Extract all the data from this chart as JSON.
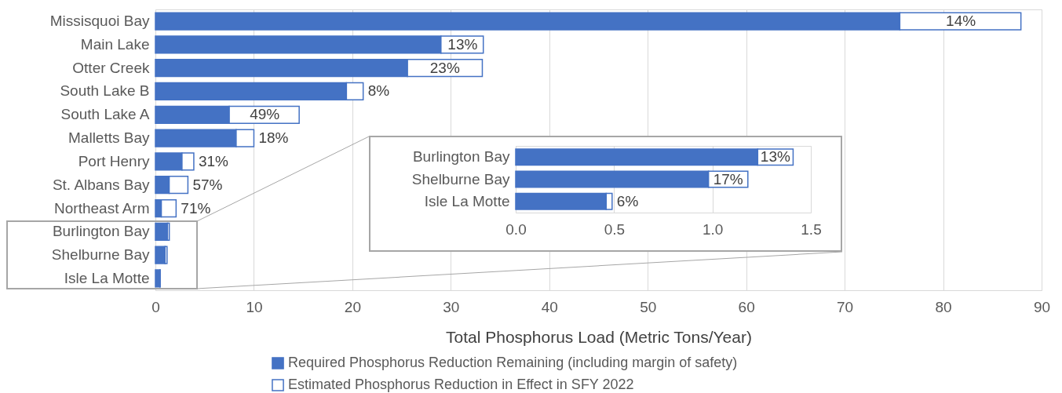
{
  "chart_data": [
    {
      "type": "bar",
      "orientation": "horizontal",
      "stacked": true,
      "xlabel": "Total Phosphorus Load (Metric Tons/Year)",
      "categories": [
        "Missisquoi Bay",
        "Main Lake",
        "Otter Creek",
        "South Lake B",
        "South Lake A",
        "Malletts Bay",
        "Port Henry",
        "St. Albans Bay",
        "Northeast Arm",
        "Burlington Bay",
        "Shelburne Bay",
        "Isle La Motte"
      ],
      "series": [
        {
          "name": "Required Phosphorus Reduction Remaining (including margin of safety)",
          "color": "#4472c4",
          "values": [
            75.6,
            29.0,
            25.6,
            19.4,
            7.5,
            8.2,
            2.7,
            1.4,
            0.6,
            1.23,
            0.98,
            0.46
          ]
        },
        {
          "name": "Estimated Phosphorus Reduction in Effect in SFY 2022",
          "color": "#ffffff",
          "values": [
            12.3,
            4.3,
            7.6,
            1.7,
            7.1,
            1.8,
            1.2,
            1.9,
            1.5,
            0.18,
            0.2,
            0.03
          ]
        }
      ],
      "annotations": [
        {
          "text": "14%",
          "x": 81.8,
          "y": "Missisquoi Bay"
        },
        {
          "text": "13%",
          "x": 31.2,
          "y": "Main Lake"
        },
        {
          "text": "23%",
          "x": 29.4,
          "y": "Otter Creek"
        },
        {
          "text": "8%",
          "x": 21.1,
          "y": "South Lake B"
        },
        {
          "text": "49%",
          "x": 11.1,
          "y": "South Lake A"
        },
        {
          "text": "18%",
          "x": 10.0,
          "y": "Malletts Bay"
        },
        {
          "text": "31%",
          "x": 3.9,
          "y": "Port Henry"
        },
        {
          "text": "57%",
          "x": 3.3,
          "y": "St. Albans Bay"
        },
        {
          "text": "71%",
          "x": 2.1,
          "y": "Northeast Arm"
        }
      ],
      "xlim": [
        0,
        90
      ],
      "xticks": [
        0,
        10,
        20,
        30,
        40,
        50,
        60,
        70,
        80,
        90
      ],
      "grid": "x",
      "legend": "bottom"
    },
    {
      "type": "bar",
      "orientation": "horizontal",
      "stacked": true,
      "categories": [
        "Burlington Bay",
        "Shelburne Bay",
        "Isle La Motte"
      ],
      "series": [
        {
          "color": "#4472c4",
          "values": [
            1.23,
            0.98,
            0.46
          ]
        },
        {
          "color": "#ffffff",
          "values": [
            0.18,
            0.2,
            0.03
          ]
        }
      ],
      "annotations": [
        {
          "text": "13%",
          "x": 1.32,
          "y": "Burlington Bay"
        },
        {
          "text": "17%",
          "x": 1.08,
          "y": "Shelburne Bay"
        },
        {
          "text": "6%",
          "x": 0.49,
          "y": "Isle La Motte"
        }
      ],
      "xlim": [
        0,
        1.5
      ],
      "xticks": [
        {
          "value": 0,
          "label": "0.0"
        },
        0.5,
        {
          "value": 1,
          "label": "1.0"
        },
        1.5
      ],
      "grid": "x"
    }
  ]
}
